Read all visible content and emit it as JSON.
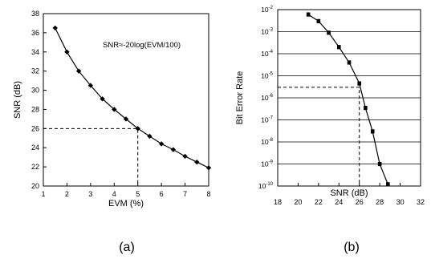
{
  "chart_data": [
    {
      "type": "line",
      "panel_label": "(a)",
      "xlabel": "EVM (%)",
      "ylabel": "SNR (dB)",
      "xlim": [
        1,
        8
      ],
      "ylim": [
        20,
        38
      ],
      "x_ticks": [
        "1",
        "2",
        "3",
        "4",
        "5",
        "6",
        "7",
        "8"
      ],
      "y_ticks": [
        "20",
        "22",
        "24",
        "26",
        "28",
        "30",
        "32",
        "34",
        "36",
        "38"
      ],
      "annotation": "SNR≈-20log(EVM/100)",
      "grid": false,
      "series": [
        {
          "x": [
            1.5,
            2.0,
            2.5,
            3.0,
            3.5,
            4.0,
            4.5,
            5.0,
            5.5,
            6.0,
            6.5,
            7.0,
            7.5,
            8.0
          ],
          "y": [
            36.5,
            34.0,
            32.0,
            30.5,
            29.1,
            28.0,
            27.0,
            26.0,
            25.2,
            24.4,
            23.8,
            23.1,
            22.5,
            21.9
          ]
        }
      ],
      "reference_point": {
        "x": 5,
        "y": 26
      }
    },
    {
      "type": "line",
      "panel_label": "(b)",
      "xlabel": "SNR (dB)",
      "ylabel": "Bit Error Rate",
      "xlim": [
        18,
        32
      ],
      "ylim": [
        1e-10,
        0.01
      ],
      "yscale": "log",
      "x_ticks": [
        "18",
        "20",
        "22",
        "24",
        "26",
        "28",
        "30",
        "32"
      ],
      "y_ticks": [
        {
          "base": "10",
          "exp": "-10",
          "value": 1e-10
        },
        {
          "base": "10",
          "exp": "-9",
          "value": 1e-09
        },
        {
          "base": "10",
          "exp": "-8",
          "value": 1e-08
        },
        {
          "base": "10",
          "exp": "-7",
          "value": 1e-07
        },
        {
          "base": "10",
          "exp": "-6",
          "value": 1e-06
        },
        {
          "base": "10",
          "exp": "-5",
          "value": 1e-05
        },
        {
          "base": "10",
          "exp": "-4",
          "value": 0.0001
        },
        {
          "base": "10",
          "exp": "-3",
          "value": 0.001
        },
        {
          "base": "10",
          "exp": "-2",
          "value": 0.01
        }
      ],
      "grid": "horizontal",
      "series": [
        {
          "x": [
            21,
            22,
            23,
            24,
            25,
            26,
            26.6,
            27.3,
            28,
            28.8
          ],
          "y": [
            0.006,
            0.003,
            0.0009,
            0.0002,
            4e-05,
            4.5e-06,
            3.5e-07,
            3e-08,
            1e-09,
            1.2e-10
          ]
        }
      ],
      "reference_point": {
        "x": 26,
        "y": 3e-06
      }
    }
  ]
}
